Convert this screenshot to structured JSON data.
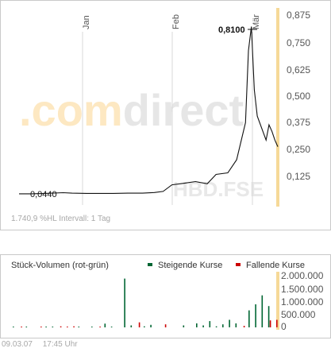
{
  "watermark": {
    "brand_left": ".com",
    "brand_right": "direct",
    "symbol": "HBD.FSE"
  },
  "price_chart": {
    "month_labels": [
      "Jan",
      "Feb",
      "Mär"
    ],
    "y_ticks": [
      "0,875",
      "0,750",
      "0,625",
      "0,500",
      "0,375",
      "0,250",
      "0,125"
    ],
    "low_label": "0,0440",
    "high_label": "0,8100",
    "info": "1.740,9 %HL Intervall: 1 Tag"
  },
  "volume_chart": {
    "title": "Stück-Volumen (rot-grün)",
    "legend_up": "Steigende Kurse",
    "legend_down": "Fallende Kurse",
    "y_ticks": [
      "2.000.000",
      "1.500.000",
      "1.000.000",
      "500.000",
      "0"
    ]
  },
  "footer": {
    "date": "09.03.07",
    "time": "17:45 Uhr"
  },
  "colors": {
    "line": "#111111",
    "accent": "#f6d998",
    "up": "#006633",
    "down": "#cc0000",
    "axis_text": "#555555"
  },
  "chart_data": [
    {
      "type": "line",
      "series": [
        {
          "x": [
            "2006-12-11",
            "2006-12-15",
            "2006-12-20",
            "2006-12-26",
            "2006-12-29",
            "2007-01-03",
            "2007-01-08",
            "2007-01-12",
            "2007-01-17",
            "2007-01-22",
            "2007-01-26",
            "2007-01-29",
            "2007-02-01",
            "2007-02-05",
            "2007-02-09",
            "2007-02-13",
            "2007-02-16",
            "2007-02-20",
            "2007-02-23",
            "2007-02-26",
            "2007-02-27",
            "2007-02-28",
            "2007-03-01",
            "2007-03-02",
            "2007-03-05",
            "2007-03-06",
            "2007-03-07",
            "2007-03-08",
            "2007-03-09"
          ],
          "y": [
            0.044,
            0.044,
            0.046,
            0.049,
            0.047,
            0.046,
            0.046,
            0.046,
            0.047,
            0.047,
            0.05,
            0.055,
            0.085,
            0.092,
            0.1,
            0.09,
            0.133,
            0.14,
            0.2,
            0.37,
            0.7,
            0.81,
            0.52,
            0.4,
            0.29,
            0.36,
            0.33,
            0.29,
            0.26
          ]
        }
      ],
      "xlabel": "",
      "ylabel": "",
      "ylim": [
        0,
        0.95
      ],
      "grid": false,
      "annotations": [
        "0,0440",
        "0,8100"
      ]
    },
    {
      "type": "bar",
      "title": "Stück-Volumen (rot-grün)",
      "series": [
        {
          "name": "Steigende Kurse",
          "values": [
            30000,
            0,
            25000,
            0,
            0,
            30000,
            20000,
            0,
            0,
            0,
            30000,
            0,
            20000,
            0,
            150000,
            30000,
            0,
            1950000,
            80000,
            0,
            40000,
            100000,
            0,
            0,
            0,
            0,
            80000,
            0,
            160000,
            80000,
            250000,
            40000,
            120000,
            300000,
            160000,
            0,
            680000,
            920000,
            1280000,
            850000,
            0
          ]
        },
        {
          "name": "Fallende Kurse",
          "values": [
            0,
            20000,
            0,
            0,
            20000,
            0,
            0,
            40000,
            30000,
            40000,
            0,
            0,
            0,
            30000,
            0,
            0,
            0,
            0,
            0,
            200000,
            0,
            0,
            0,
            120000,
            0,
            0,
            0,
            0,
            0,
            0,
            0,
            0,
            0,
            0,
            0,
            60000,
            0,
            0,
            0,
            280000,
            300000
          ]
        }
      ],
      "ylim": [
        0,
        2100000
      ],
      "legend": "top-right"
    }
  ]
}
